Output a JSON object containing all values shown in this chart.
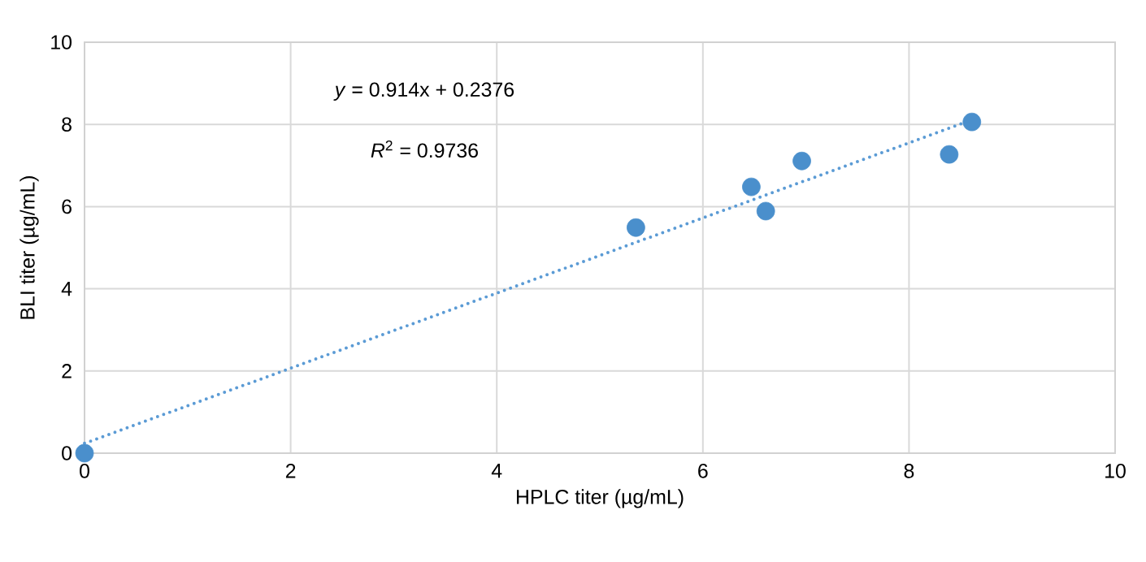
{
  "chart_data": {
    "type": "scatter",
    "xlabel": "HPLC titer (µg/mL)",
    "ylabel": "BLI titer (µg/mL)",
    "xlim": [
      0,
      10
    ],
    "ylim": [
      0,
      10
    ],
    "xticks": [
      0,
      2,
      4,
      6,
      8,
      10
    ],
    "yticks": [
      0,
      2,
      4,
      6,
      8,
      10
    ],
    "grid": true,
    "marker": "circle",
    "annotations": [
      "*y* = 0.914x + 0.2376",
      "*R*$^{2}$ = 0.9736"
    ],
    "series": [
      {
        "color": "#4a8fcc",
        "x": [
          0,
          5.35,
          6.47,
          6.61,
          6.96,
          8.39,
          8.61
        ],
        "values": [
          0,
          5.49,
          6.48,
          5.89,
          7.11,
          7.27,
          8.06
        ]
      },
      {
        "type": "line",
        "color": "#5b9bd5",
        "marker": "none",
        "line_style": "dotted",
        "x": [
          0,
          8.6
        ],
        "values": [
          0.24,
          8.1
        ]
      }
    ]
  }
}
